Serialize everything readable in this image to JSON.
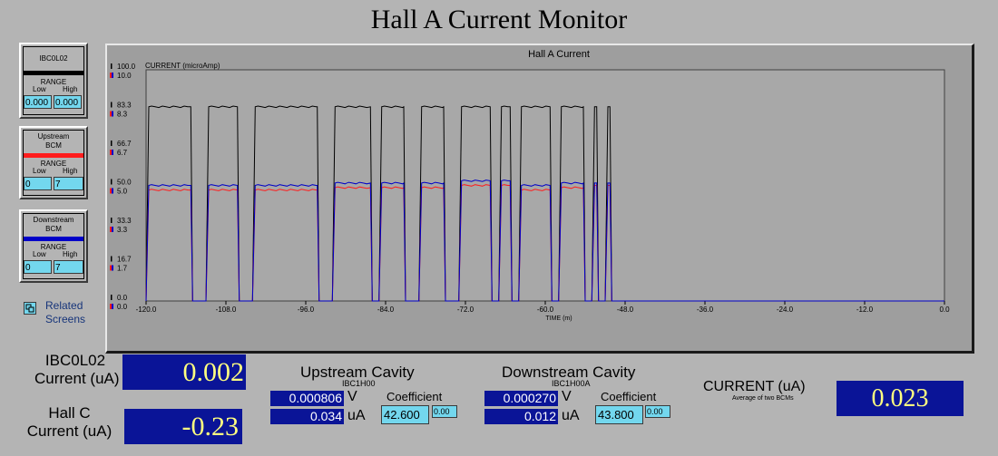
{
  "title": "Hall A Current Monitor",
  "legend": [
    {
      "name_lines": [
        "IBC0L02"
      ],
      "color": "#000000",
      "range_label": "RANGE",
      "low_label": "Low",
      "high_label": "High",
      "low": "0.000",
      "high": "0.000"
    },
    {
      "name_lines": [
        "Upstream",
        "BCM"
      ],
      "color": "#ff1c1c",
      "range_label": "RANGE",
      "low_label": "Low",
      "high_label": "High",
      "low": "0",
      "high": "7"
    },
    {
      "name_lines": [
        "Downstream",
        "BCM"
      ],
      "color": "#0000c8",
      "range_label": "RANGE",
      "low_label": "Low",
      "high_label": "High",
      "low": "0",
      "high": "7"
    }
  ],
  "related": {
    "label_line1": "Related",
    "label_line2": "Screens",
    "icon": "window-stack-icon"
  },
  "chart_data": {
    "type": "line",
    "title": "Hall A Current",
    "ylabel": "CURRENT (microAmp)",
    "xlabel": "TIME (m)",
    "xlim": [
      -120,
      0
    ],
    "x_ticks": [
      "-120.0",
      "-108.0",
      "-96.0",
      "-84.0",
      "-72.0",
      "-60.0",
      "-48.0",
      "-36.0",
      "-24.0",
      "-12.0",
      "0.0"
    ],
    "y_ticks_black": [
      "100.0",
      "83.3",
      "66.7",
      "50.0",
      "33.3",
      "16.7",
      "0.0"
    ],
    "y_ticks_colored": [
      "10.0",
      "8.3",
      "6.7",
      "5.0",
      "3.3",
      "1.7",
      "0.0"
    ],
    "ylim_black": [
      0,
      100
    ],
    "ylim_colored": [
      0,
      10
    ],
    "grid": false,
    "segments": [
      [
        -120,
        -113
      ],
      [
        -111,
        -106
      ],
      [
        -104,
        -94
      ],
      [
        -92,
        -86
      ],
      [
        -85,
        -81
      ],
      [
        -79,
        -75
      ],
      [
        -73,
        -68
      ],
      [
        -67,
        -65
      ],
      [
        -64,
        -59
      ],
      [
        -58,
        -54
      ],
      [
        -53,
        -52
      ],
      [
        -51,
        -50
      ]
    ],
    "series": [
      {
        "color": "#000000",
        "axis": "black",
        "level": 84
      },
      {
        "color": "#ff1c1c",
        "axis": "colored",
        "levels": [
          4.8,
          4.8,
          4.8,
          4.9,
          4.9,
          4.9,
          5.0,
          5.0,
          4.8,
          4.9,
          5.0,
          5.0
        ]
      },
      {
        "color": "#0000c8",
        "axis": "colored",
        "levels": [
          5.0,
          5.0,
          5.0,
          5.1,
          5.1,
          5.1,
          5.2,
          5.2,
          5.0,
          5.1,
          5.1,
          5.1
        ]
      }
    ]
  },
  "readouts": {
    "ibc_label_1": "IBC0L02",
    "ibc_label_2": "Current (uA)",
    "ibc_value": "0.002",
    "hallc_label_1": "Hall C",
    "hallc_label_2": "Current (uA)",
    "hallc_value": "-0.23",
    "upstream": {
      "title": "Upstream Cavity",
      "pv": "IBC1H00",
      "voltage": "0.000806",
      "v_unit": "V",
      "current": "0.034",
      "c_unit": "uA",
      "coef_label": "Coefficient",
      "coef": "42.600",
      "offset": "0.00"
    },
    "downstream": {
      "title": "Downstream Cavity",
      "pv": "IBC1H00A",
      "voltage": "0.000270",
      "v_unit": "V",
      "current": "0.012",
      "c_unit": "uA",
      "coef_label": "Coefficient",
      "coef": "43.800",
      "offset": "0.00"
    },
    "avg": {
      "label": "CURRENT (uA)",
      "sublabel": "Average of two BCMs",
      "value": "0.023"
    }
  }
}
